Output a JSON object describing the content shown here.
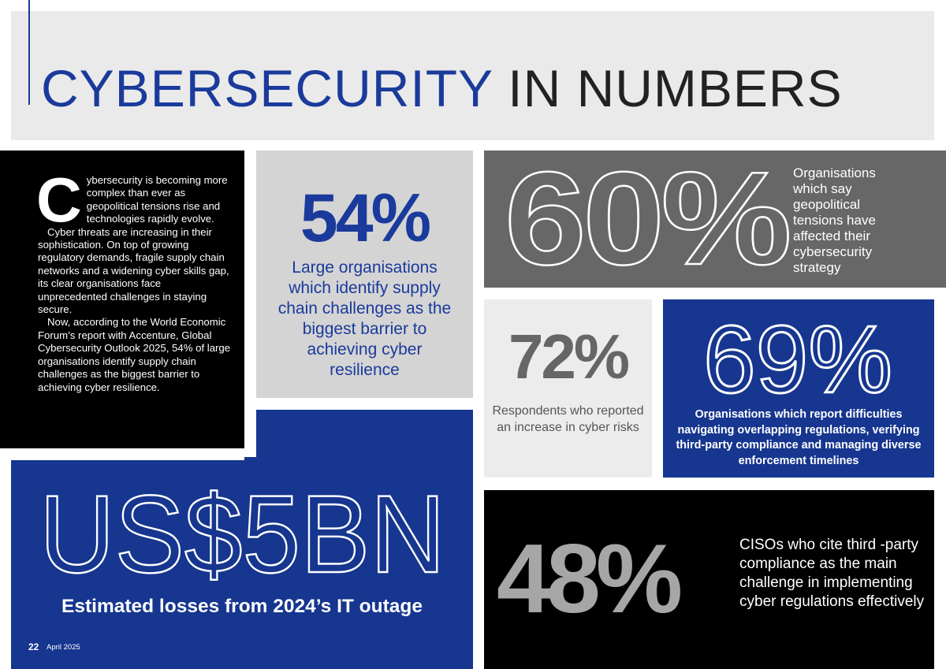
{
  "header": {
    "title_part1": "CYBERSECURITY",
    "title_part2": "IN NUMBERS",
    "accent": "#1a3a9c"
  },
  "intro": {
    "dropcap": "C",
    "paragraph1": "ybersecurity is becoming more complex than ever as geopolitical tensions rise and technologies rapidly evolve.",
    "paragraph2": "Cyber threats are increasing in their sophistication. On top of growing regulatory demands, fragile supply chain networks and a widening cyber skills gap, its clear organisations face unprecedented challenges in staying secure.",
    "paragraph3": "Now, according to the World Economic Forum’s report with Accenture, Global Cybersecurity Outlook 2025, 54% of large organisations identify supply chain challenges as the biggest barrier to achieving cyber resilience."
  },
  "stats": {
    "supply_chain": {
      "value": "54%",
      "label": "Large organisations which identify supply chain challenges as the biggest barrier to achieving cyber resilience",
      "color": "#1a3a9c"
    },
    "geopolitical": {
      "value": "60%",
      "label": "Organisations which say geopolitical tensions have affected their cybersecurity strategy"
    },
    "cyber_risk": {
      "value": "72%",
      "label": "Respondents who reported an increase in cyber risks"
    },
    "regulations": {
      "value": "69%",
      "label": "Organisations which report difficulties navigating overlapping regulations, verifying third-party compliance and managing diverse enforcement timelines"
    },
    "losses": {
      "value": "US$5BN",
      "label": "Estimated losses from 2024’s IT outage"
    },
    "cisos": {
      "value": "48%",
      "label": "CISOs who cite third -party compliance as the main challenge in implementing cyber regulations effectively"
    }
  },
  "footer": {
    "page_number": "22",
    "date": "April 2025"
  }
}
